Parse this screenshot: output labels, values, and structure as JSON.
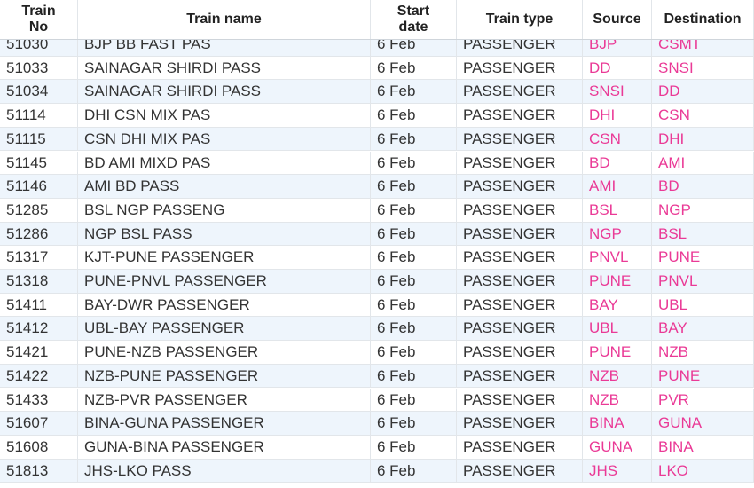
{
  "table": {
    "columns": [
      "Train No",
      "Train name",
      "Start date",
      "Train type",
      "Source",
      "Destination"
    ],
    "rows": [
      [
        "51030",
        "BJP BB FAST PAS",
        "6 Feb",
        "PASSENGER",
        "BJP",
        "CSMT"
      ],
      [
        "51033",
        "SAINAGAR SHIRDI PASS",
        "6 Feb",
        "PASSENGER",
        "DD",
        "SNSI"
      ],
      [
        "51034",
        "SAINAGAR SHIRDI PASS",
        "6 Feb",
        "PASSENGER",
        "SNSI",
        "DD"
      ],
      [
        "51114",
        "DHI CSN MIX PAS",
        "6 Feb",
        "PASSENGER",
        "DHI",
        "CSN"
      ],
      [
        "51115",
        "CSN DHI MIX PAS",
        "6 Feb",
        "PASSENGER",
        "CSN",
        "DHI"
      ],
      [
        "51145",
        "BD AMI MIXD PAS",
        "6 Feb",
        "PASSENGER",
        "BD",
        "AMI"
      ],
      [
        "51146",
        "AMI BD PASS",
        "6 Feb",
        "PASSENGER",
        "AMI",
        "BD"
      ],
      [
        "51285",
        "BSL NGP PASSENG",
        "6 Feb",
        "PASSENGER",
        "BSL",
        "NGP"
      ],
      [
        "51286",
        "NGP BSL PASS",
        "6 Feb",
        "PASSENGER",
        "NGP",
        "BSL"
      ],
      [
        "51317",
        "KJT-PUNE PASSENGER",
        "6 Feb",
        "PASSENGER",
        "PNVL",
        "PUNE"
      ],
      [
        "51318",
        "PUNE-PNVL PASSENGER",
        "6 Feb",
        "PASSENGER",
        "PUNE",
        "PNVL"
      ],
      [
        "51411",
        "BAY-DWR PASSENGER",
        "6 Feb",
        "PASSENGER",
        "BAY",
        "UBL"
      ],
      [
        "51412",
        "UBL-BAY PASSENGER",
        "6 Feb",
        "PASSENGER",
        "UBL",
        "BAY"
      ],
      [
        "51421",
        "PUNE-NZB PASSENGER",
        "6 Feb",
        "PASSENGER",
        "PUNE",
        "NZB"
      ],
      [
        "51422",
        "NZB-PUNE PASSENGER",
        "6 Feb",
        "PASSENGER",
        "NZB",
        "PUNE"
      ],
      [
        "51433",
        "NZB-PVR PASSENGER",
        "6 Feb",
        "PASSENGER",
        "NZB",
        "PVR"
      ],
      [
        "51607",
        "BINA-GUNA PASSENGER",
        "6 Feb",
        "PASSENGER",
        "BINA",
        "GUNA"
      ],
      [
        "51608",
        "GUNA-BINA PASSENGER",
        "6 Feb",
        "PASSENGER",
        "GUNA",
        "BINA"
      ],
      [
        "51813",
        "JHS-LKO PASS",
        "6 Feb",
        "PASSENGER",
        "JHS",
        "LKO"
      ]
    ]
  }
}
